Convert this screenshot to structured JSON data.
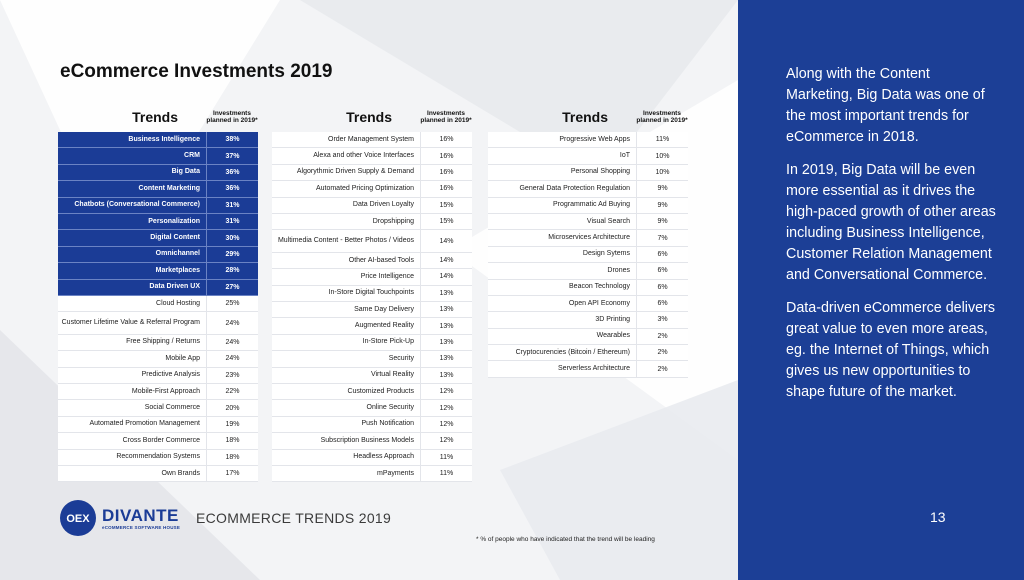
{
  "title": "eCommerce Investments 2019",
  "header": {
    "trends": "Trends",
    "investments": "Investments planned in 2019*"
  },
  "tables": [
    [
      {
        "name": "Business Intelligence",
        "value": "38%",
        "hl": true
      },
      {
        "name": "CRM",
        "value": "37%",
        "hl": true
      },
      {
        "name": "Big Data",
        "value": "36%",
        "hl": true
      },
      {
        "name": "Content Marketing",
        "value": "36%",
        "hl": true
      },
      {
        "name": "Chatbots (Conversational Commerce)",
        "value": "31%",
        "hl": true
      },
      {
        "name": "Personalization",
        "value": "31%",
        "hl": true
      },
      {
        "name": "Digital Content",
        "value": "30%",
        "hl": true
      },
      {
        "name": "Omnichannel",
        "value": "29%",
        "hl": true
      },
      {
        "name": "Marketplaces",
        "value": "28%",
        "hl": true
      },
      {
        "name": "Data Driven UX",
        "value": "27%",
        "hl": true
      },
      {
        "name": "Cloud Hosting",
        "value": "25%"
      },
      {
        "name": "Customer Lifetime Value & Referral Program",
        "value": "24%",
        "tall": true
      },
      {
        "name": "Free Shipping / Returns",
        "value": "24%"
      },
      {
        "name": "Mobile App",
        "value": "24%"
      },
      {
        "name": "Predictive Analysis",
        "value": "23%"
      },
      {
        "name": "Mobile-First Approach",
        "value": "22%"
      },
      {
        "name": "Social Commerce",
        "value": "20%"
      },
      {
        "name": "Automated Promotion Management",
        "value": "19%"
      },
      {
        "name": "Cross Border Commerce",
        "value": "18%"
      },
      {
        "name": "Recommendation Systems",
        "value": "18%"
      },
      {
        "name": "Own Brands",
        "value": "17%"
      }
    ],
    [
      {
        "name": "Order Management System",
        "value": "16%"
      },
      {
        "name": "Alexa and other Voice Interfaces",
        "value": "16%"
      },
      {
        "name": "Algorythmic Driven Supply & Demand",
        "value": "16%"
      },
      {
        "name": "Automated Pricing Optimization",
        "value": "16%"
      },
      {
        "name": "Data Driven Loyalty",
        "value": "15%"
      },
      {
        "name": "Dropshipping",
        "value": "15%"
      },
      {
        "name": "Multimedia Content - Better Photos / Videos",
        "value": "14%",
        "tall": true
      },
      {
        "name": "Other AI-based Tools",
        "value": "14%"
      },
      {
        "name": "Price Intelligence",
        "value": "14%"
      },
      {
        "name": "In-Store Digital Touchpoints",
        "value": "13%"
      },
      {
        "name": "Same Day Delivery",
        "value": "13%"
      },
      {
        "name": "Augmented Reality",
        "value": "13%"
      },
      {
        "name": "In-Store Pick-Up",
        "value": "13%"
      },
      {
        "name": "Security",
        "value": "13%"
      },
      {
        "name": "Virtual Reality",
        "value": "13%"
      },
      {
        "name": "Customized Products",
        "value": "12%"
      },
      {
        "name": "Online Security",
        "value": "12%"
      },
      {
        "name": "Push Notification",
        "value": "12%"
      },
      {
        "name": "Subscription Business Models",
        "value": "12%"
      },
      {
        "name": "Headless Approach",
        "value": "11%"
      },
      {
        "name": "mPayments",
        "value": "11%"
      }
    ],
    [
      {
        "name": "Progressive Web Apps",
        "value": "11%"
      },
      {
        "name": "IoT",
        "value": "10%"
      },
      {
        "name": "Personal Shopping",
        "value": "10%"
      },
      {
        "name": "General Data Protection Regulation",
        "value": "9%"
      },
      {
        "name": "Programmatic Ad Buying",
        "value": "9%"
      },
      {
        "name": "Visual Search",
        "value": "9%"
      },
      {
        "name": "Microservices Architecture",
        "value": "7%"
      },
      {
        "name": "Design Sytems",
        "value": "6%"
      },
      {
        "name": "Drones",
        "value": "6%"
      },
      {
        "name": "Beacon Technology",
        "value": "6%"
      },
      {
        "name": "Open API Economy",
        "value": "6%"
      },
      {
        "name": "3D Printing",
        "value": "3%"
      },
      {
        "name": "Wearables",
        "value": "2%"
      },
      {
        "name": "Cryptocurencies (Bitcoin / Ethereum)",
        "value": "2%"
      },
      {
        "name": "Serverless Architecture",
        "value": "2%"
      }
    ]
  ],
  "sidebar": {
    "p1": "Along with the Content Marketing, Big Data was one of the most important trends for eCommerce in 2018.",
    "p2": "In 2019, Big Data will be even more essential as it drives the high-paced growth of other areas including Business Intelligence, Customer Relation Management and Conversational Commerce.",
    "p3": "Data-driven eCommerce delivers great value to even more areas, eg. the Internet of Things, which gives us new opportunities to shape future of the market."
  },
  "page_number": "13",
  "logo": {
    "brand": "DIVANTE",
    "tagline": "eCOMMERCE SOFTWARE HOUSE",
    "mark_text": "OEX"
  },
  "footer_title": "ECOMMERCE TRENDS 2019",
  "footnote": "* % of people who have indicated that the trend will be leading",
  "colors": {
    "accent": "#1c3f96",
    "highlight_row": "#1b3c96"
  }
}
